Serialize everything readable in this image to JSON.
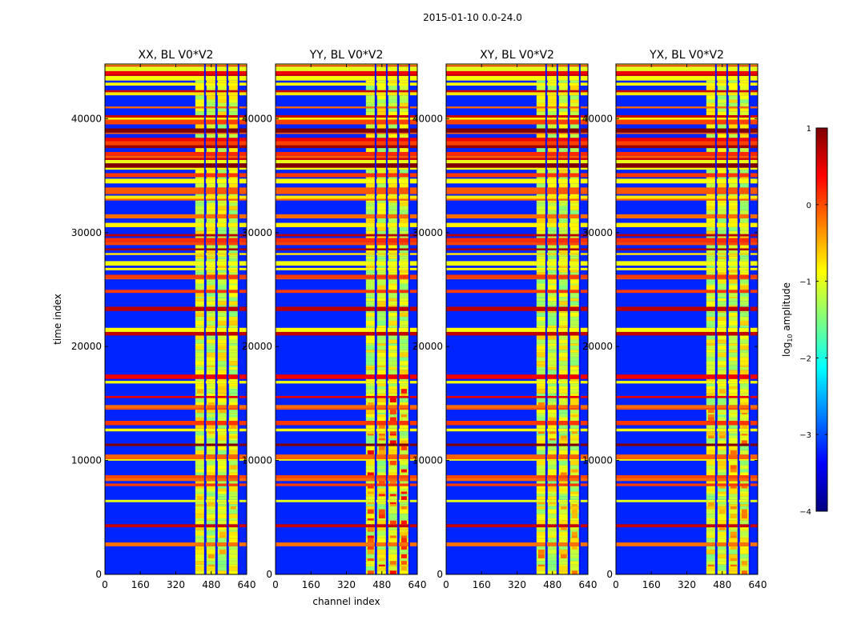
{
  "figure_title": "2015-01-10 0.0-24.0",
  "colorbar": {
    "label": "log10 amplitude",
    "label_main": "log",
    "label_sub": "10",
    "label_rest": " amplitude",
    "range": [
      -4,
      1
    ],
    "ticks": [
      1,
      0,
      -1,
      -2,
      -3,
      -4
    ],
    "tick_labels": [
      "1",
      "0",
      "−1",
      "−2",
      "−3",
      "−4"
    ],
    "stops": [
      "#00007f",
      "#0000ff",
      "#007fff",
      "#00ffff",
      "#7fff7f",
      "#ffff00",
      "#ff7f00",
      "#ff0000",
      "#7f0000"
    ]
  },
  "chart_data": [
    {
      "type": "heatmap",
      "title": "XX, BL V0*V2",
      "xlabel": "",
      "ylabel": "time index",
      "xlim": [
        0,
        640
      ],
      "ylim": [
        0,
        44800
      ],
      "xticks": [
        0,
        160,
        320,
        480,
        640
      ],
      "yticks": [
        0,
        10000,
        20000,
        30000,
        40000
      ],
      "show_yticklabels": true,
      "band_channels": [
        408,
        600
      ],
      "band_strength": 1.0,
      "hot_patch": 0.2
    },
    {
      "type": "heatmap",
      "title": "YY, BL V0*V2",
      "xlabel": "channel index",
      "ylabel": "",
      "xlim": [
        0,
        640
      ],
      "ylim": [
        0,
        44800
      ],
      "xticks": [
        0,
        160,
        320,
        480,
        640
      ],
      "yticks": [
        0,
        10000,
        20000,
        30000,
        40000
      ],
      "show_yticklabels": true,
      "band_channels": [
        408,
        600
      ],
      "band_strength": 1.0,
      "hot_patch": 1.0
    },
    {
      "type": "heatmap",
      "title": "XY, BL V0*V2",
      "xlabel": "",
      "ylabel": "",
      "xlim": [
        0,
        640
      ],
      "ylim": [
        0,
        44800
      ],
      "xticks": [
        0,
        160,
        320,
        480,
        640
      ],
      "yticks": [
        0,
        10000,
        20000,
        30000,
        40000
      ],
      "show_yticklabels": true,
      "band_channels": [
        408,
        600
      ],
      "band_strength": 1.0,
      "hot_patch": 0.45
    },
    {
      "type": "heatmap",
      "title": "YX, BL V0*V2",
      "xlabel": "",
      "ylabel": "",
      "xlim": [
        0,
        640
      ],
      "ylim": [
        0,
        44800
      ],
      "xticks": [
        0,
        160,
        320,
        480,
        640
      ],
      "yticks": [
        0,
        10000,
        20000,
        30000,
        40000
      ],
      "show_yticklabels": true,
      "band_channels": [
        408,
        600
      ],
      "band_strength": 1.0,
      "hot_patch": 0.5
    }
  ]
}
